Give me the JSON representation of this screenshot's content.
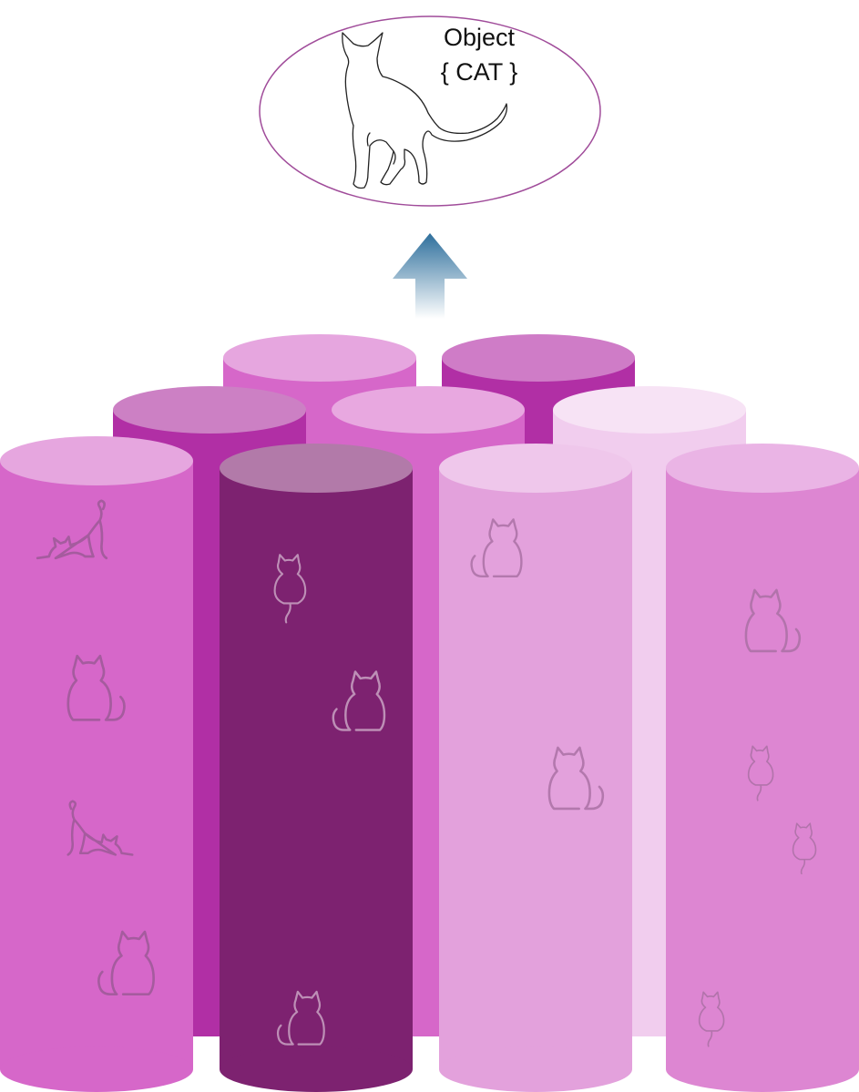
{
  "object_label": {
    "title": "Object",
    "value": "{ CAT }"
  },
  "colors": {
    "ellipse_border": "#a04c9a",
    "arrow_top": "#2e6f9c",
    "arrow_bottom": "#ffffff",
    "cylinder_mid_back": "#b12fa5",
    "cylinder_mid_back_top": "#c878c2",
    "cylinder_back": "#d667c9",
    "cylinder_back_top": "#e6a6df",
    "cylinder_dark": "#7d2270",
    "cylinder_dark_top": "#b27aa9",
    "cylinder_light": "#e3a1dc",
    "cylinder_light_top": "#efc7eb",
    "cylinder_pale": "#f1cdee",
    "cylinder_pale_top": "#f7e3f5",
    "cylinder_right": "#dd86d2",
    "cylinder_right_top": "#eab4e5",
    "cat_outline": "#222222",
    "embossed_cat": "#a0609a"
  },
  "icons": {
    "main_cat": "cat-silhouette-icon",
    "arrow": "up-arrow-icon",
    "pattern_cats": [
      "stretching-cat-icon",
      "sitting-cat-icon",
      "cat-back-view-icon"
    ]
  }
}
